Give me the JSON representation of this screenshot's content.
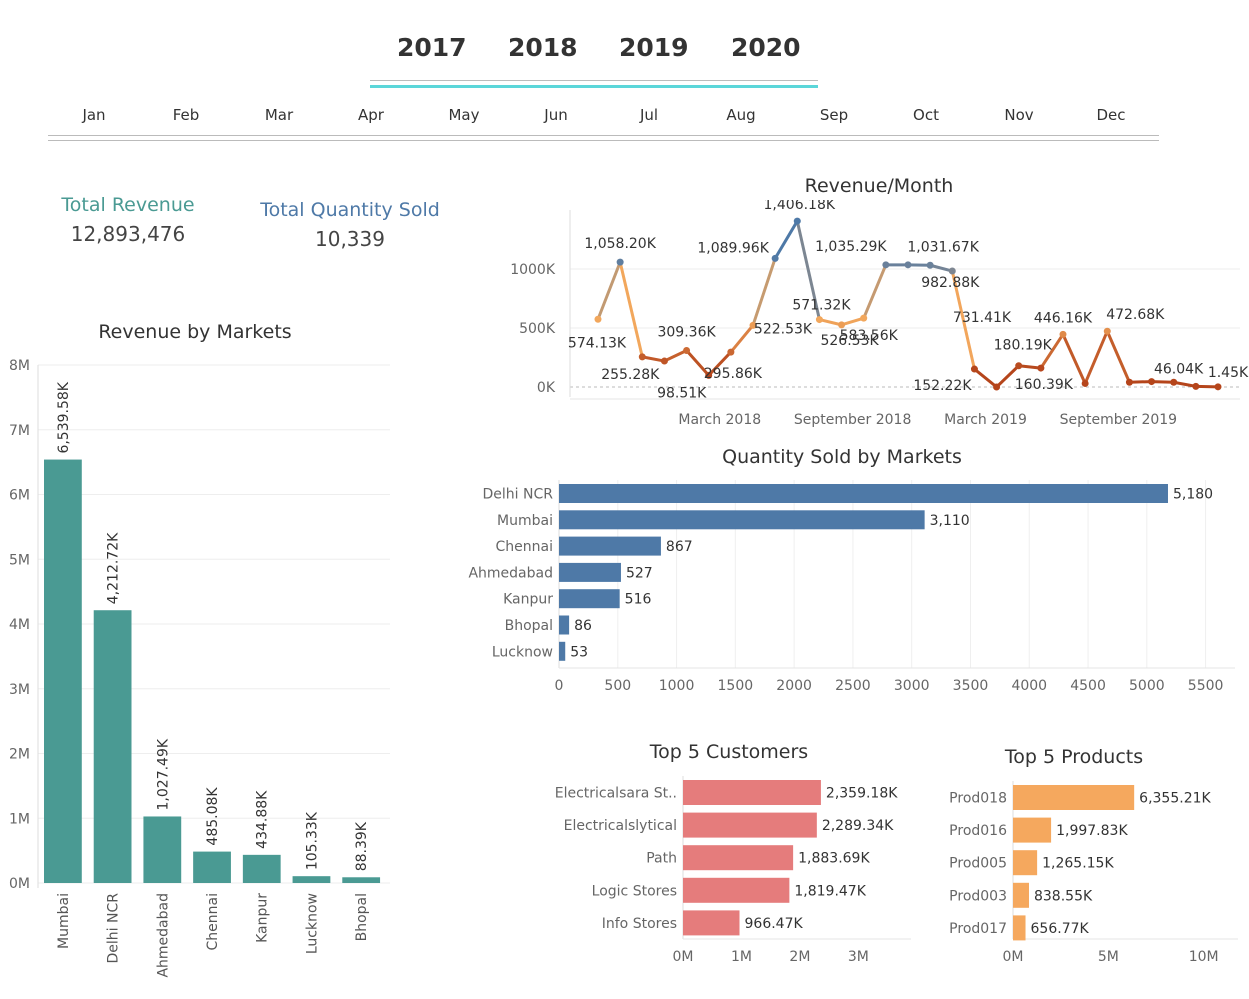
{
  "filters": {
    "years": [
      "2017",
      "2018",
      "2019",
      "2020"
    ],
    "months": [
      "Jan",
      "Feb",
      "Mar",
      "Apr",
      "May",
      "Jun",
      "Jul",
      "Aug",
      "Sep",
      "Oct",
      "Nov",
      "Dec"
    ],
    "slider_color": "#5bd6d9"
  },
  "kpis": {
    "revenue_label": "Total Revenue",
    "revenue_value": "12,893,476",
    "revenue_color": "#4a9a93",
    "qty_label": "Total Quantity Sold",
    "qty_value": "10,339",
    "qty_color": "#4e79a7"
  },
  "chart_data": [
    {
      "id": "revenue_by_markets",
      "type": "bar",
      "orientation": "vertical",
      "title": "Revenue by Markets",
      "categories": [
        "Mumbai",
        "Delhi NCR",
        "Ahmedabad",
        "Chennai",
        "Kanpur",
        "Lucknow",
        "Bhopal"
      ],
      "values": [
        6539.58,
        4212.72,
        1027.49,
        485.08,
        434.88,
        105.33,
        88.39
      ],
      "value_labels": [
        "6,539.58K",
        "4,212.72K",
        "1,027.49K",
        "485.08K",
        "434.88K",
        "105.33K",
        "88.39K"
      ],
      "y_ticks": [
        "0M",
        "1M",
        "2M",
        "3M",
        "4M",
        "5M",
        "6M",
        "7M",
        "8M"
      ],
      "ylim": [
        0,
        8000
      ],
      "color": "#4a9a93",
      "grid": true
    },
    {
      "id": "revenue_per_month",
      "type": "line",
      "title": "Revenue/Month",
      "x_ticks": [
        "March 2018",
        "September 2018",
        "March 2019",
        "September 2019"
      ],
      "y_ticks": [
        "0K",
        "500K",
        "1000K"
      ],
      "ylim": [
        0,
        1400
      ],
      "points": [
        {
          "value": 574.13,
          "label": "574.13K"
        },
        {
          "value": 1058.2,
          "label": "1,058.20K"
        },
        {
          "value": 255.28,
          "label": "255.28K"
        },
        {
          "value": 220,
          "label": ""
        },
        {
          "value": 309.36,
          "label": "309.36K"
        },
        {
          "value": 98.51,
          "label": "98.51K"
        },
        {
          "value": 295.86,
          "label": "295.86K"
        },
        {
          "value": 522.53,
          "label": "522.53K"
        },
        {
          "value": 1089.96,
          "label": "1,089.96K"
        },
        {
          "value": 1406.18,
          "label": "1,406.18K"
        },
        {
          "value": 571.32,
          "label": "571.32K"
        },
        {
          "value": 526.53,
          "label": "526.53K"
        },
        {
          "value": 583.56,
          "label": "583.56K"
        },
        {
          "value": 1035.29,
          "label": "1,035.29K"
        },
        {
          "value": 1035.29,
          "label": ""
        },
        {
          "value": 1031.67,
          "label": "1,031.67K"
        },
        {
          "value": 982.88,
          "label": "982.88K"
        },
        {
          "value": 152.22,
          "label": "152.22K"
        },
        {
          "value": 0,
          "label": ""
        },
        {
          "value": 180.19,
          "label": "180.19K"
        },
        {
          "value": 160.39,
          "label": "160.39K"
        },
        {
          "value": 446.16,
          "label": "446.16K"
        },
        {
          "value": 30,
          "label": ""
        },
        {
          "value": 472.68,
          "label": "472.68K"
        },
        {
          "value": 40,
          "label": ""
        },
        {
          "value": 46.04,
          "label": "46.04K"
        },
        {
          "value": 40,
          "label": ""
        },
        {
          "value": 5,
          "label": ""
        },
        {
          "value": 1.45,
          "label": "1.45K"
        }
      ],
      "extra_label": "731.41K",
      "colors": {
        "high": "#4e79a7",
        "mid": "#f2a75c",
        "low": "#b5451b"
      }
    },
    {
      "id": "quantity_by_markets",
      "type": "bar",
      "orientation": "horizontal",
      "title": "Quantity Sold by Markets",
      "categories": [
        "Delhi NCR",
        "Mumbai",
        "Chennai",
        "Ahmedabad",
        "Kanpur",
        "Bhopal",
        "Lucknow"
      ],
      "values": [
        5180,
        3110,
        867,
        527,
        516,
        86,
        53
      ],
      "value_labels": [
        "5,180",
        "3,110",
        "867",
        "527",
        "516",
        "86",
        "53"
      ],
      "x_ticks": [
        "0",
        "500",
        "1000",
        "1500",
        "2000",
        "2500",
        "3000",
        "3500",
        "4000",
        "4500",
        "5000",
        "5500"
      ],
      "xlim": [
        0,
        5750
      ],
      "color": "#4e79a7",
      "grid": true
    },
    {
      "id": "top5_customers",
      "type": "bar",
      "orientation": "horizontal",
      "title": "Top 5 Customers",
      "categories": [
        "Electricalsara St..",
        "Electricalslytical",
        "Path",
        "Logic Stores",
        "Info Stores"
      ],
      "values": [
        2359.18,
        2289.34,
        1883.69,
        1819.47,
        966.47
      ],
      "value_labels": [
        "2,359.18K",
        "2,289.34K",
        "1,883.69K",
        "1,819.47K",
        "966.47K"
      ],
      "x_ticks": [
        "0M",
        "1M",
        "2M",
        "3M"
      ],
      "xlim": [
        0,
        3900
      ],
      "color": "#e57c7c"
    },
    {
      "id": "top5_products",
      "type": "bar",
      "orientation": "horizontal",
      "title": "Top 5 Products",
      "categories": [
        "Prod018",
        "Prod016",
        "Prod005",
        "Prod003",
        "Prod017"
      ],
      "values": [
        6355.21,
        1997.83,
        1265.15,
        838.55,
        656.77
      ],
      "value_labels": [
        "6,355.21K",
        "1,997.83K",
        "1,265.15K",
        "838.55K",
        "656.77K"
      ],
      "x_ticks": [
        "0M",
        "5M",
        "10M"
      ],
      "xlim": [
        0,
        11800
      ],
      "color": "#f5a85e"
    }
  ]
}
